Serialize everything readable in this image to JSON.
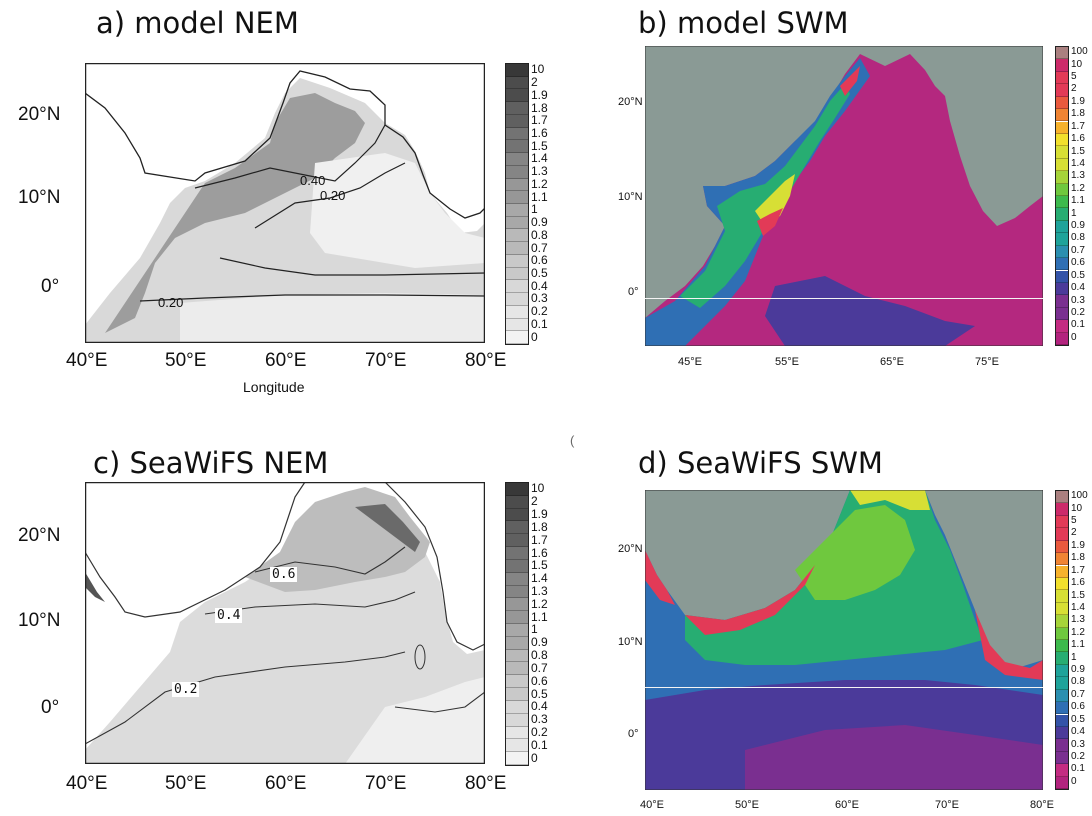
{
  "panels": {
    "a": {
      "title": "a) model NEM",
      "lat_labels": [
        "20°N",
        "10°N",
        "0°"
      ],
      "lon_labels": [
        "40°E",
        "50°E",
        "60°E",
        "70°E",
        "80°E"
      ],
      "xlabel": "Longitude",
      "contour_labels": [
        "0.40",
        "0.20",
        "0.20"
      ],
      "colorbar": [
        "10",
        "2",
        "1.9",
        "1.8",
        "1.7",
        "1.6",
        "1.5",
        "1.4",
        "1.3",
        "1.2",
        "1.1",
        "1",
        "0.9",
        "0.8",
        "0.7",
        "0.6",
        "0.5",
        "0.4",
        "0.3",
        "0.2",
        "0.1",
        "0"
      ]
    },
    "b": {
      "title": "b) model SWM",
      "lat_labels": [
        "20°N",
        "10°N",
        "0°"
      ],
      "lon_labels": [
        "45°E",
        "55°E",
        "65°E",
        "75°E"
      ],
      "colorbar": [
        "100",
        "10",
        "5",
        "2",
        "1.9",
        "1.8",
        "1.7",
        "1.6",
        "1.5",
        "1.4",
        "1.3",
        "1.2",
        "1.1",
        "1",
        "0.9",
        "0.8",
        "0.7",
        "0.6",
        "0.5",
        "0.4",
        "0.3",
        "0.2",
        "0.1",
        "0"
      ]
    },
    "c": {
      "title": "c) SeaWiFS NEM",
      "lat_labels": [
        "20°N",
        "10°N",
        "0°"
      ],
      "lon_labels": [
        "40°E",
        "50°E",
        "60°E",
        "70°E",
        "80°E"
      ],
      "contour_labels": [
        "0.6",
        "0.4",
        "0.2"
      ],
      "colorbar": [
        "10",
        "2",
        "1.9",
        "1.8",
        "1.7",
        "1.6",
        "1.5",
        "1.4",
        "1.3",
        "1.2",
        "1.1",
        "1",
        "0.9",
        "0.8",
        "0.7",
        "0.6",
        "0.5",
        "0.4",
        "0.3",
        "0.2",
        "0.1",
        "0"
      ]
    },
    "d": {
      "title": "d) SeaWiFS SWM",
      "lat_labels": [
        "20°N",
        "10°N",
        "0°"
      ],
      "lon_labels": [
        "40°E",
        "50°E",
        "60°E",
        "70°E",
        "80°E"
      ],
      "colorbar": [
        "100",
        "10",
        "5",
        "2",
        "1.9",
        "1.8",
        "1.7",
        "1.6",
        "1.5",
        "1.4",
        "1.3",
        "1.2",
        "1.1",
        "1",
        "0.9",
        "0.8",
        "0.7",
        "0.6",
        "0.5",
        "0.4",
        "0.3",
        "0.2",
        "0.1",
        "0"
      ]
    }
  },
  "colors": {
    "land": "#8a9a95",
    "gray_ramp": [
      "#f3f3f3",
      "#e6e6e6",
      "#d8d8d8",
      "#c9c9c9",
      "#b9b9b9",
      "#a8a8a8",
      "#979797",
      "#858585",
      "#737373",
      "#606060",
      "#4c4c4c",
      "#383838"
    ],
    "color_ramp": [
      "#b3237e",
      "#c42c82",
      "#7a2f90",
      "#4b3a9a",
      "#3453a8",
      "#2f6fb4",
      "#2b8fb0",
      "#1fa39a",
      "#27ad72",
      "#3dba4d",
      "#6fc83e",
      "#a6d43a",
      "#d7df35",
      "#f2e02d",
      "#f7b22c",
      "#f08433",
      "#ea5a3e",
      "#e23a57",
      "#cc2a6a",
      "#aa8080"
    ]
  }
}
